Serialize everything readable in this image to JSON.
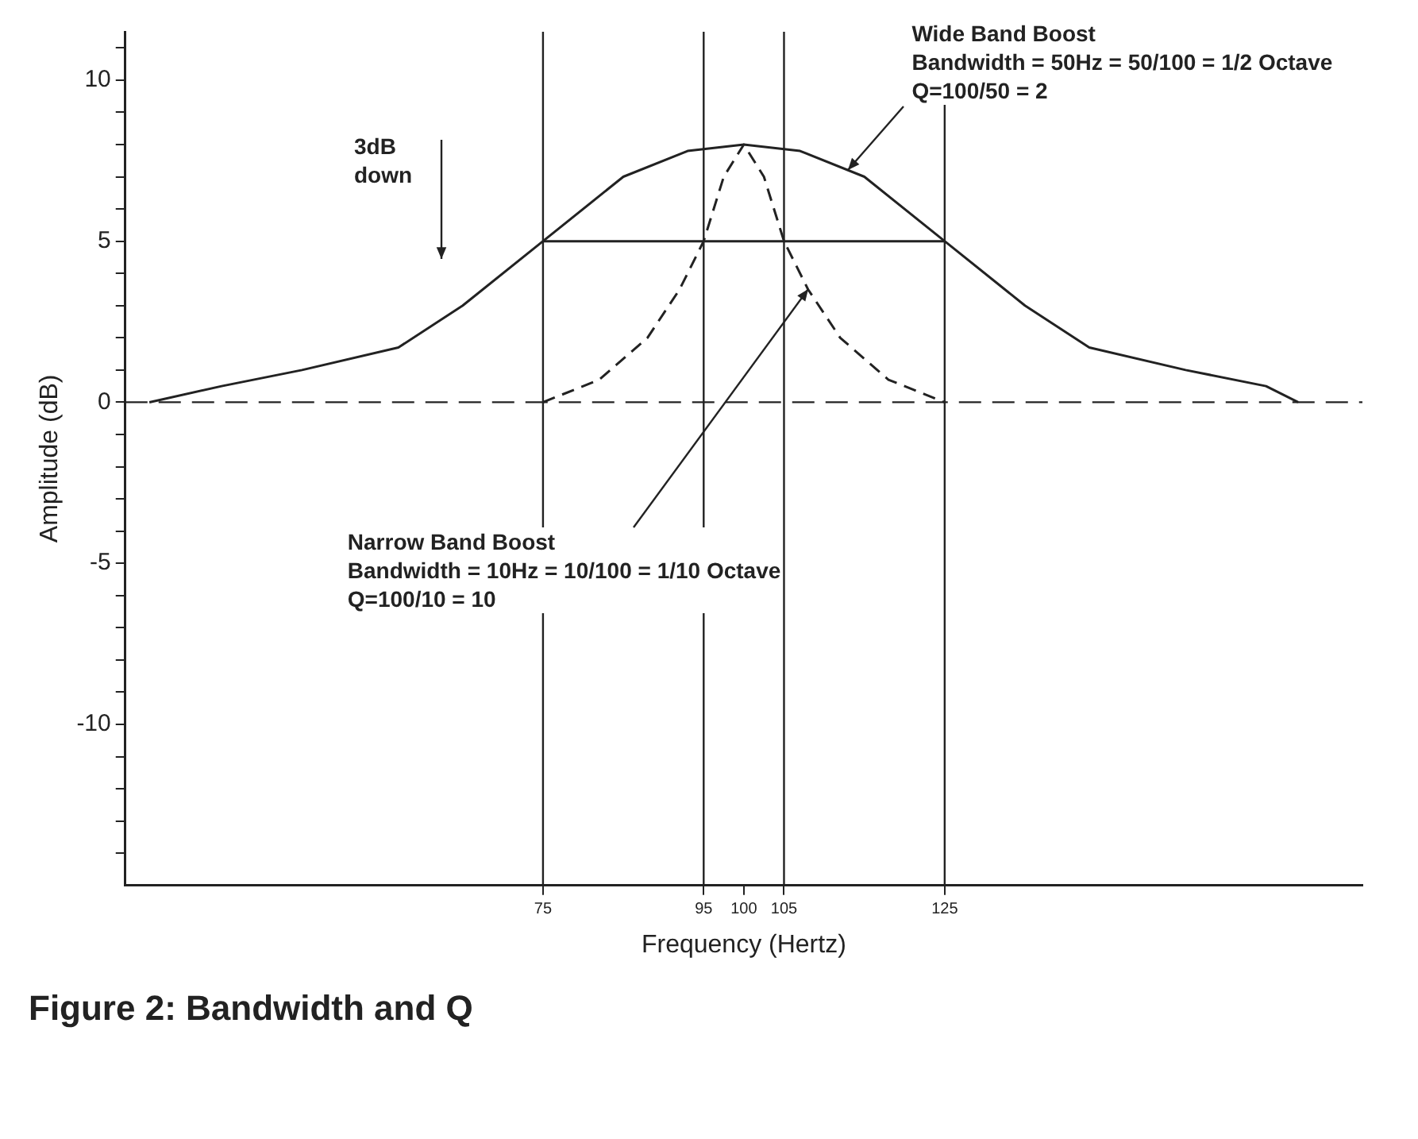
{
  "chart_data": {
    "type": "line",
    "title": "Figure 2: Bandwidth and Q",
    "xlabel": "Frequency (Hertz)",
    "ylabel": "Amplitude (dB)",
    "xlim": [
      23,
      177
    ],
    "xticks": [
      75,
      95,
      100,
      105,
      125
    ],
    "ylim": [
      -15,
      11.5
    ],
    "yticks": [
      {
        "value": -14,
        "label": null
      },
      {
        "value": -13,
        "label": null
      },
      {
        "value": -12,
        "label": null
      },
      {
        "value": -11,
        "label": null
      },
      -10,
      {
        "value": -9,
        "label": null
      },
      {
        "value": -8,
        "label": null
      },
      {
        "value": -7,
        "label": null
      },
      {
        "value": -6,
        "label": null
      },
      -5,
      {
        "value": -4,
        "label": null
      },
      {
        "value": -3,
        "label": null
      },
      {
        "value": -2,
        "label": null
      },
      {
        "value": -1,
        "label": null
      },
      0,
      {
        "value": 1,
        "label": null
      },
      {
        "value": 2,
        "label": null
      },
      {
        "value": 3,
        "label": null
      },
      {
        "value": 4,
        "label": null
      },
      5,
      {
        "value": 6,
        "label": null
      },
      {
        "value": 7,
        "label": null
      },
      {
        "value": 8,
        "label": null
      },
      {
        "value": 9,
        "label": null
      },
      10,
      {
        "value": 11,
        "label": null
      }
    ],
    "grid": false,
    "legend": false,
    "marker": "none",
    "series": [
      {
        "color": "#222222",
        "line_style": "solid",
        "x": [
          26,
          35,
          45,
          57,
          65,
          75,
          85,
          93,
          100,
          107,
          115,
          125,
          135,
          143,
          155,
          165,
          169
        ],
        "values": [
          0,
          0.5,
          1,
          1.7,
          3,
          5,
          7,
          7.8,
          8,
          7.8,
          7,
          5,
          3,
          1.7,
          1,
          0.5,
          0
        ]
      },
      {
        "color": "#222222",
        "line_style": "dashed",
        "x": [
          75,
          82,
          88,
          92,
          95,
          97.5,
          100,
          102.5,
          105,
          108,
          112,
          118,
          125
        ],
        "values": [
          0,
          0.7,
          2,
          3.5,
          5,
          7,
          8,
          7,
          5,
          3.5,
          2,
          0.7,
          0
        ]
      },
      {
        "color": "#222222",
        "line_style": "solid",
        "x": [
          75,
          125
        ],
        "values": [
          5,
          5
        ]
      }
    ],
    "ref_lines": [
      {
        "axis": "y",
        "value": 0,
        "line_style": "dashed",
        "color": "#222222"
      },
      {
        "axis": "x",
        "value": 75,
        "color": "#222222"
      },
      {
        "axis": "x",
        "value": 95,
        "color": "#222222"
      },
      {
        "axis": "x",
        "value": 105,
        "color": "#222222"
      },
      {
        "axis": "x",
        "value": 125,
        "color": "#222222"
      }
    ],
    "annotations": [
      {
        "text": "Wide Band Boost\nBandwidth = 50Hz = 50/100 = 1/2 Octave\nQ=100/50 = 2",
        "x": 113,
        "y": 7.2
      },
      {
        "text": "Narrow Band Boost\nBandwidth = 10Hz = 10/100 = 1/10 Octave\nQ=100/10 = 10",
        "x": 108,
        "y": 3.5
      },
      "3dB\ndown"
    ]
  }
}
